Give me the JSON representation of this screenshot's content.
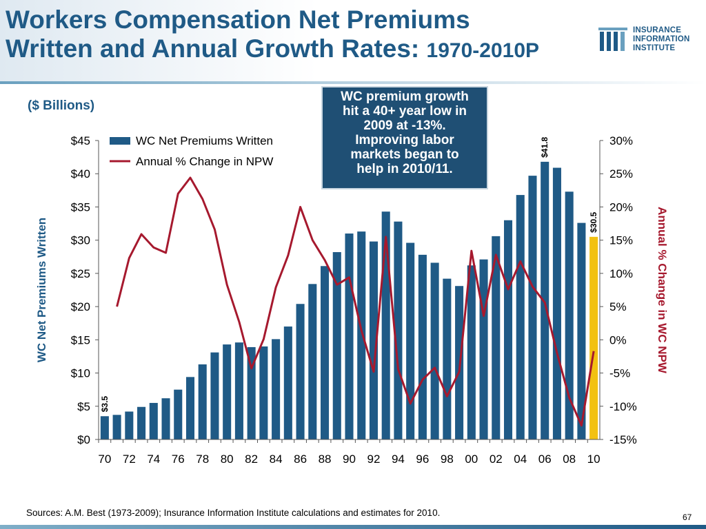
{
  "slide": {
    "title_line1": "Workers Compensation Net Premiums",
    "title_line2": "Written and Annual Growth Rates: ",
    "title_year": "1970-2010P",
    "units_label": "($ Billions)",
    "callout_lines": [
      "WC premium growth",
      "hit a 40+ year low in",
      "2009 at -13%.",
      "Improving labor",
      "markets began to",
      "help in 2010/11."
    ],
    "source": "Sources: A.M. Best (1973-2009); Insurance Information Institute calculations and estimates for 2010.",
    "page_number": "67",
    "logo_lines": [
      "INSURANCE",
      "INFORMATION",
      "INSTITUTE"
    ]
  },
  "colors": {
    "bar": "#1f5a86",
    "bar_highlight": "#f2c111",
    "line": "#a6192e",
    "title": "#1f5a86",
    "callout_bg": "#1f4f74"
  },
  "chart_data": {
    "type": "bar",
    "xlabel": "",
    "ylabel": "WC Net Premiums Written",
    "y2label": "Annual % Change in WC NPW",
    "ylim": [
      0,
      45
    ],
    "y2lim": [
      -15,
      30
    ],
    "yticks": [
      "$0",
      "$5",
      "$10",
      "$15",
      "$20",
      "$25",
      "$30",
      "$35",
      "$40",
      "$45"
    ],
    "y2ticks": [
      "-15%",
      "-10%",
      "-5%",
      "0%",
      "5%",
      "10%",
      "15%",
      "20%",
      "25%",
      "30%"
    ],
    "xticks": [
      "70",
      "72",
      "74",
      "76",
      "78",
      "80",
      "82",
      "84",
      "86",
      "88",
      "90",
      "92",
      "94",
      "96",
      "98",
      "00",
      "02",
      "04",
      "06",
      "08",
      "10"
    ],
    "grid": false,
    "legend_position": "top-left",
    "years": [
      1970,
      1971,
      1972,
      1973,
      1974,
      1975,
      1976,
      1977,
      1978,
      1979,
      1980,
      1981,
      1982,
      1983,
      1984,
      1985,
      1986,
      1987,
      1988,
      1989,
      1990,
      1991,
      1992,
      1993,
      1994,
      1995,
      1996,
      1997,
      1998,
      1999,
      2000,
      2001,
      2002,
      2003,
      2004,
      2005,
      2006,
      2007,
      2008,
      2009,
      2010
    ],
    "series": [
      {
        "name": "WC Net Premiums Written",
        "kind": "bar",
        "values": [
          3.5,
          3.7,
          4.2,
          4.9,
          5.5,
          6.2,
          7.5,
          9.4,
          11.3,
          13.1,
          14.3,
          14.6,
          13.9,
          14.0,
          15.1,
          17.0,
          20.4,
          23.4,
          26.1,
          28.2,
          31.0,
          31.3,
          29.8,
          34.3,
          32.8,
          29.6,
          27.8,
          26.6,
          24.2,
          23.1,
          26.2,
          27.1,
          30.6,
          33.0,
          36.8,
          39.7,
          41.8,
          40.9,
          37.3,
          32.6,
          30.5
        ],
        "highlight_last": true
      },
      {
        "name": "Annual % Change in NPW",
        "kind": "line",
        "axis": "y2",
        "values": [
          5.0,
          12.3,
          15.9,
          13.9,
          13.1,
          22.0,
          24.4,
          21.2,
          16.6,
          8.3,
          2.7,
          -4.3,
          0.1,
          7.9,
          12.7,
          20.0,
          15.0,
          12.0,
          8.3,
          9.4,
          1.4,
          -4.8,
          15.5,
          -4.4,
          -9.6,
          -6.0,
          -4.2,
          -8.5,
          -4.8,
          13.4,
          3.6,
          12.8,
          7.6,
          11.8,
          8.0,
          5.6,
          -2.0,
          -8.7,
          -12.9,
          -1.7
        ]
      }
    ],
    "data_labels": [
      {
        "year": 1970,
        "text": "$3.5"
      },
      {
        "year": 2006,
        "text": "$41.8"
      },
      {
        "year": 2010,
        "text": "$30.5"
      }
    ]
  }
}
